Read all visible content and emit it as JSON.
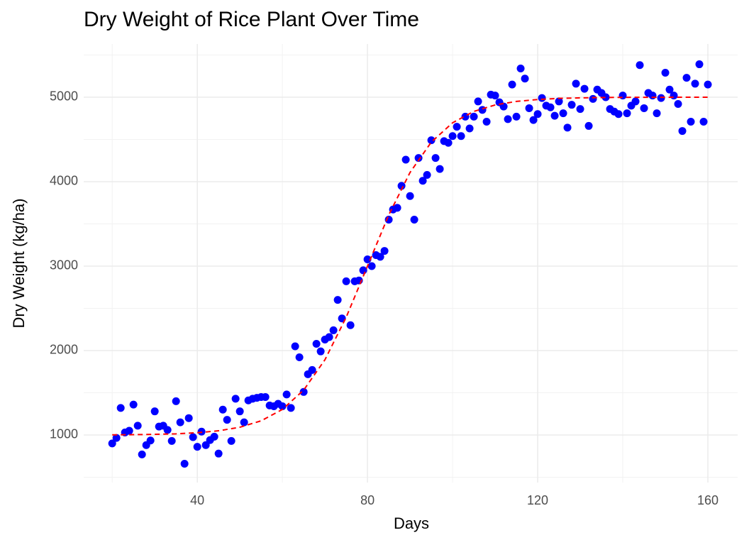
{
  "chart_data": {
    "type": "scatter",
    "title": "Dry Weight of Rice Plant Over Time",
    "x_label": "Days",
    "y_label": "Dry Weight (kg/ha)",
    "color": "#0000ff",
    "x": [
      20,
      21,
      22,
      23,
      24,
      25,
      26,
      27,
      28,
      29,
      30,
      31,
      32,
      33,
      34,
      35,
      36,
      37,
      38,
      39,
      40,
      41,
      42,
      43,
      44,
      45,
      46,
      47,
      48,
      49,
      50,
      51,
      52,
      53,
      54,
      55,
      56,
      57,
      58,
      59,
      60,
      61,
      62,
      63,
      64,
      65,
      66,
      67,
      68,
      69,
      70,
      71,
      72,
      73,
      74,
      75,
      76,
      77,
      78,
      79,
      80,
      81,
      82,
      83,
      84,
      85,
      86,
      87,
      88,
      89,
      90,
      91,
      92,
      93,
      94,
      95,
      96,
      97,
      98,
      99,
      100,
      101,
      102,
      103,
      104,
      105,
      106,
      107,
      108,
      109,
      110,
      111,
      112,
      113,
      114,
      115,
      116,
      117,
      118,
      119,
      120,
      121,
      122,
      123,
      124,
      125,
      126,
      127,
      128,
      129,
      130,
      131,
      132,
      133,
      134,
      135,
      136,
      137,
      138,
      139,
      140,
      141,
      142,
      143,
      144,
      145,
      146,
      147,
      148,
      149,
      150,
      151,
      152,
      153,
      154,
      155,
      156,
      157,
      158,
      159,
      160
    ],
    "values": [
      900,
      965,
      1320,
      1030,
      1050,
      1360,
      1110,
      770,
      880,
      935,
      1280,
      1100,
      1110,
      1060,
      930,
      1400,
      1150,
      660,
      1200,
      975,
      860,
      1040,
      880,
      940,
      980,
      780,
      1300,
      1180,
      930,
      1430,
      1280,
      1150,
      1410,
      1430,
      1440,
      1450,
      1450,
      1350,
      1340,
      1370,
      1340,
      1480,
      1320,
      2050,
      1920,
      1510,
      1720,
      1770,
      2080,
      1990,
      2130,
      2160,
      2240,
      2600,
      2380,
      2820,
      2300,
      2820,
      2830,
      2950,
      3080,
      3000,
      3130,
      3110,
      3180,
      3550,
      3670,
      3690,
      3950,
      4260,
      3830,
      3550,
      4280,
      4010,
      4080,
      4490,
      4280,
      4150,
      4480,
      4460,
      4540,
      4650,
      4540,
      4770,
      4630,
      4770,
      4950,
      4850,
      4710,
      5030,
      5020,
      4940,
      4890,
      4740,
      5150,
      4770,
      5340,
      5220,
      4870,
      4730,
      4800,
      4990,
      4900,
      4880,
      4780,
      4950,
      4810,
      4640,
      4910,
      5160,
      4860,
      5100,
      4660,
      4980,
      5090,
      5050,
      5000,
      4860,
      4830,
      4800,
      5020,
      4810,
      4900,
      4950,
      5380,
      4870,
      5050,
      5020,
      4810,
      4990,
      5290,
      5090,
      5020,
      4920,
      4600,
      5230,
      4710,
      5160,
      5390,
      4710,
      5150
    ],
    "fit": {
      "color": "#ff0000",
      "dashed": true,
      "x": [
        20,
        25,
        30,
        35,
        40,
        45,
        50,
        55,
        60,
        65,
        70,
        75,
        80,
        85,
        90,
        95,
        100,
        105,
        110,
        115,
        120,
        125,
        130,
        135,
        140,
        145,
        150,
        155,
        160
      ],
      "values": [
        1002,
        1004,
        1008,
        1014,
        1027,
        1050,
        1092,
        1168,
        1303,
        1532,
        1891,
        2395,
        3000,
        3606,
        4109,
        4468,
        4697,
        4832,
        4908,
        4950,
        4973,
        4986,
        4992,
        4996,
        4998,
        4999,
        4999,
        5000,
        5000
      ]
    },
    "xlim": [
      13.3,
      167
    ],
    "ylim": [
      437,
      5630
    ],
    "xticks": [
      40,
      80,
      120,
      160
    ],
    "yticks": [
      1000,
      2000,
      3000,
      4000,
      5000
    ],
    "grid": true,
    "minor_grid": true
  }
}
